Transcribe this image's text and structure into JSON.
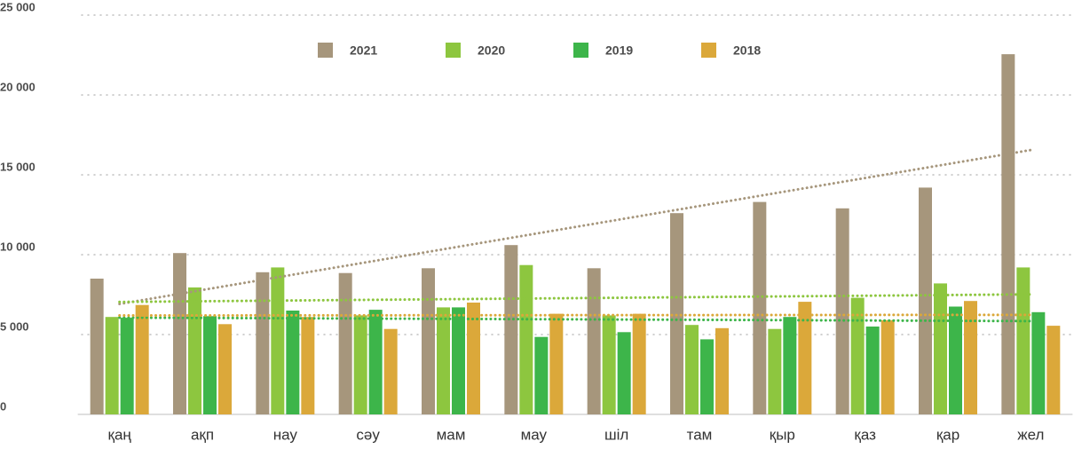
{
  "chart_data": {
    "type": "bar",
    "categories": [
      "қаң",
      "ақп",
      "нау",
      "сәу",
      "мам",
      "мау",
      "шіл",
      "там",
      "қыр",
      "қаз",
      "қар",
      "жел"
    ],
    "series": [
      {
        "name": "2021",
        "color": "#a6967c",
        "values": [
          8500,
          10100,
          8900,
          8850,
          9150,
          10600,
          9150,
          12600,
          13300,
          12900,
          14200,
          22550
        ]
      },
      {
        "name": "2020",
        "color": "#8dc63f",
        "values": [
          6100,
          7950,
          9200,
          6200,
          6700,
          9350,
          6200,
          5600,
          5350,
          7300,
          8200,
          9200
        ]
      },
      {
        "name": "2019",
        "color": "#3db54a",
        "values": [
          6050,
          6150,
          6500,
          6550,
          6700,
          4850,
          5150,
          4700,
          6100,
          5500,
          6750,
          6400
        ]
      },
      {
        "name": "2018",
        "color": "#dba83a",
        "values": [
          6850,
          5650,
          6100,
          5350,
          7000,
          6300,
          6300,
          5400,
          7050,
          5900,
          7100,
          5550
        ]
      }
    ],
    "ylim": [
      0,
      25000
    ],
    "yticks": [
      0,
      {
        "value": 5000,
        "label": "5 000"
      },
      {
        "value": 10000,
        "label": "10 000"
      },
      {
        "value": 15000,
        "label": "15 000"
      },
      {
        "value": 20000,
        "label": "20 000"
      },
      {
        "value": 25000,
        "label": "25 000"
      }
    ],
    "grid": true,
    "trendlines": true
  }
}
